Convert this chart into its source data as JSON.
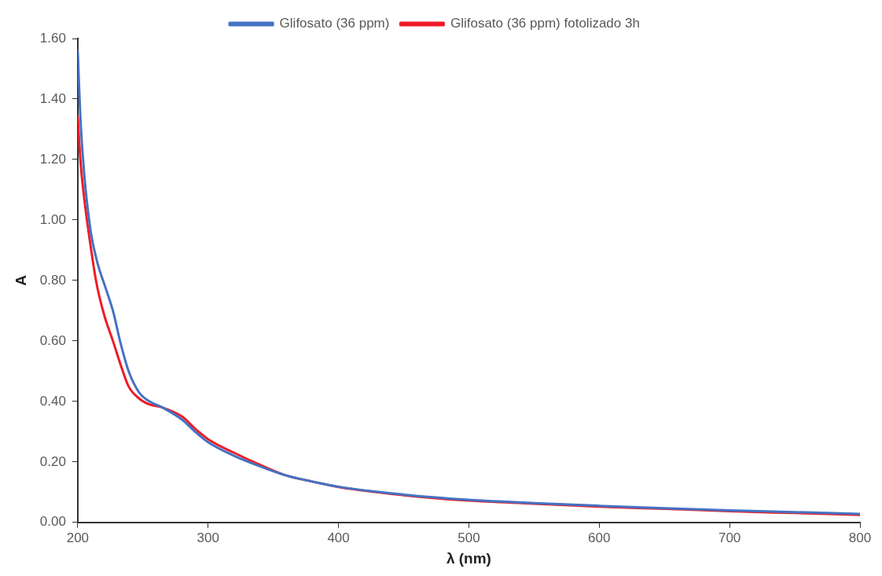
{
  "chart_data": {
    "type": "line",
    "xlabel": "λ (nm)",
    "ylabel": "A",
    "legend": "top",
    "grid": false,
    "marker": "none",
    "xlim": [
      200,
      800
    ],
    "xticks": [
      200,
      300,
      400,
      500,
      600,
      700,
      800
    ],
    "ylim": [
      0,
      1.6
    ],
    "yticks": [
      {
        "value": 0,
        "label": "0.00"
      },
      {
        "value": 0.2,
        "label": "0.20"
      },
      {
        "value": 0.4,
        "label": "0.40"
      },
      {
        "value": 0.6,
        "label": "0.60"
      },
      {
        "value": 0.8,
        "label": "0.80"
      },
      {
        "value": 1,
        "label": "1.00"
      },
      {
        "value": 1.2,
        "label": "1.20"
      },
      {
        "value": 1.4,
        "label": "1.40"
      },
      {
        "value": 1.6,
        "label": "1.60"
      }
    ],
    "series": [
      {
        "name": "Glifosato (36 ppm)",
        "color": "#4472c4",
        "x": [
          200,
          202,
          205,
          210,
          215,
          221,
          227,
          233,
          239,
          247,
          255,
          265,
          280,
          290,
          300,
          320,
          340,
          360,
          380,
          400,
          450,
          500,
          550,
          600,
          650,
          700,
          750,
          800
        ],
        "values": [
          1.56,
          1.34,
          1.15,
          0.96,
          0.86,
          0.78,
          0.7,
          0.59,
          0.5,
          0.43,
          0.4,
          0.38,
          0.34,
          0.3,
          0.265,
          0.22,
          0.185,
          0.155,
          0.135,
          0.118,
          0.092,
          0.075,
          0.064,
          0.055,
          0.047,
          0.04,
          0.034,
          0.028
        ]
      },
      {
        "name": "Glifosato (36 ppm) fotolizado 3h",
        "color": "#ee1c25",
        "x": [
          200,
          202,
          205,
          209,
          214,
          220,
          227,
          233,
          239,
          247,
          255,
          265,
          280,
          290,
          300,
          320,
          340,
          360,
          380,
          400,
          450,
          500,
          550,
          600,
          650,
          700,
          750,
          800
        ],
        "values": [
          1.34,
          1.2,
          1.07,
          0.94,
          0.8,
          0.69,
          0.6,
          0.52,
          0.45,
          0.41,
          0.39,
          0.38,
          0.35,
          0.31,
          0.275,
          0.23,
          0.19,
          0.155,
          0.135,
          0.117,
          0.09,
          0.072,
          0.062,
          0.052,
          0.045,
          0.037,
          0.031,
          0.025
        ]
      }
    ]
  }
}
